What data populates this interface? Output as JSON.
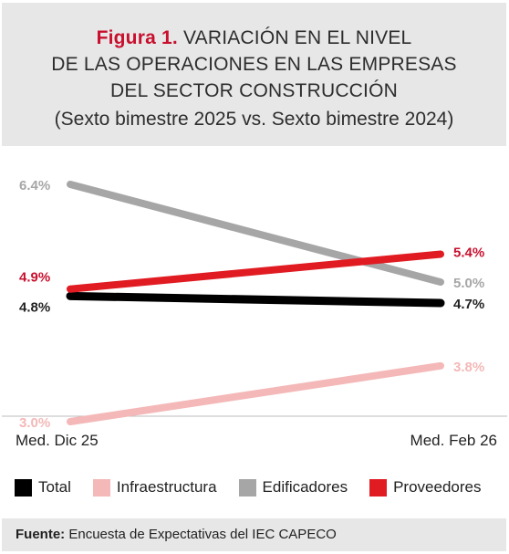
{
  "header": {
    "figure_label": "Figura 1.",
    "title_line1": "VARIACIÓN EN EL NIVEL",
    "title_line2": "DE LAS OPERACIONES EN LAS EMPRESAS",
    "title_line3": "DEL SECTOR CONSTRUCCIÓN",
    "subtitle": "(Sexto bimestre 2025 vs. Sexto bimestre 2024)"
  },
  "chart_data": {
    "type": "line",
    "categories": [
      "Med. Dic 25",
      "Med. Feb 26"
    ],
    "series": [
      {
        "name": "Edificadores",
        "values": [
          6.4,
          5.0
        ],
        "labels": [
          "6.4%",
          "5.0%"
        ],
        "color": "#a6a6a6",
        "label_color": "#a6a6a6"
      },
      {
        "name": "Infraestructura",
        "values": [
          3.0,
          3.8
        ],
        "labels": [
          "3.0%",
          "3.8%"
        ],
        "color": "#f4b8b8",
        "label_color": "#f4b8b8"
      },
      {
        "name": "Total",
        "values": [
          4.8,
          4.7
        ],
        "labels": [
          "4.8%",
          "4.7%"
        ],
        "color": "#000000",
        "label_color": "#222222"
      },
      {
        "name": "Proveedores",
        "values": [
          4.9,
          5.4
        ],
        "labels": [
          "4.9%",
          "5.4%"
        ],
        "color": "#e01b22",
        "label_color": "#c8102e"
      }
    ],
    "legend_order": [
      "Total",
      "Infraestructura",
      "Edificadores",
      "Proveedores"
    ],
    "legend_position": "bottom",
    "grid": false
  },
  "footer": {
    "label": "Fuente:",
    "text": "Encuesta de Expectativas del IEC CAPECO"
  }
}
